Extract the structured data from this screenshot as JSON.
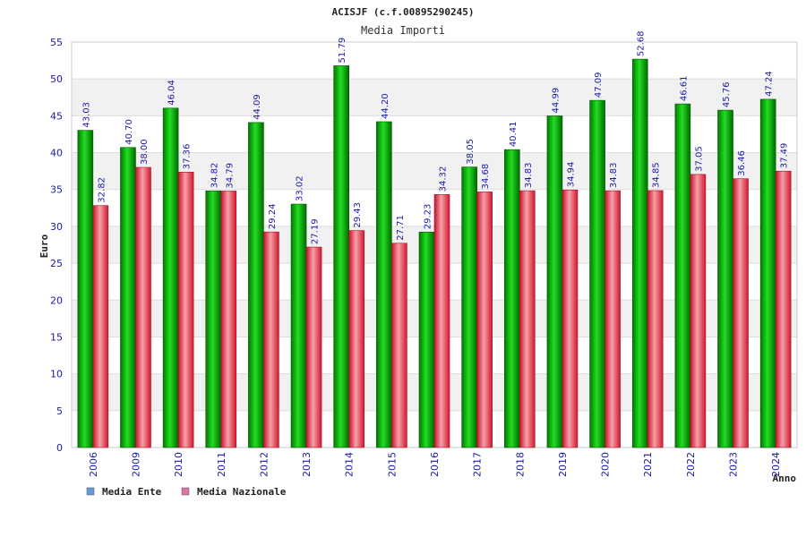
{
  "chart_data": {
    "type": "bar",
    "title": "ACISJF (c.f.00895290245)",
    "subtitle": "Media Importi",
    "xlabel": "Anno",
    "ylabel": "Euro",
    "ylim": [
      0,
      55
    ],
    "yticks": [
      0,
      5,
      10,
      15,
      20,
      25,
      30,
      35,
      40,
      45,
      50,
      55
    ],
    "categories": [
      "2006",
      "2009",
      "2010",
      "2011",
      "2012",
      "2013",
      "2014",
      "2015",
      "2016",
      "2017",
      "2018",
      "2019",
      "2020",
      "2021",
      "2022",
      "2023",
      "2024"
    ],
    "series": [
      {
        "name": "Media Ente",
        "color": "#00aa00",
        "values": [
          43.03,
          40.7,
          46.04,
          34.82,
          44.09,
          33.02,
          51.79,
          44.2,
          29.23,
          38.05,
          40.41,
          44.99,
          47.09,
          52.68,
          46.61,
          45.76,
          47.24
        ],
        "labels": [
          "43.03",
          "40.70",
          "46.04",
          "34.82",
          "44.09",
          "33.02",
          "51.79",
          "44.20",
          "29.23",
          "38.05",
          "40.41",
          "44.99",
          "47.09",
          "52.68",
          "46.61",
          "45.76",
          "47.24"
        ]
      },
      {
        "name": "Media Nazionale",
        "color": "#e8283c",
        "values": [
          32.82,
          38.0,
          37.36,
          34.79,
          29.24,
          27.19,
          29.43,
          27.71,
          34.32,
          34.68,
          34.83,
          34.94,
          34.83,
          34.85,
          37.05,
          36.46,
          37.49
        ],
        "labels": [
          "32.82",
          "38.00",
          "37.36",
          "34.79",
          "29.24",
          "27.19",
          "29.43",
          "27.71",
          "34.32",
          "34.68",
          "34.83",
          "34.94",
          "34.83",
          "34.85",
          "37.05",
          "36.46",
          "37.49"
        ]
      }
    ],
    "legend": {
      "position": "bottom-left",
      "items": [
        {
          "label": "Media Ente",
          "color": "#6699dd"
        },
        {
          "label": "Media Nazionale",
          "color": "#dd77aa"
        }
      ]
    },
    "grid": true
  }
}
